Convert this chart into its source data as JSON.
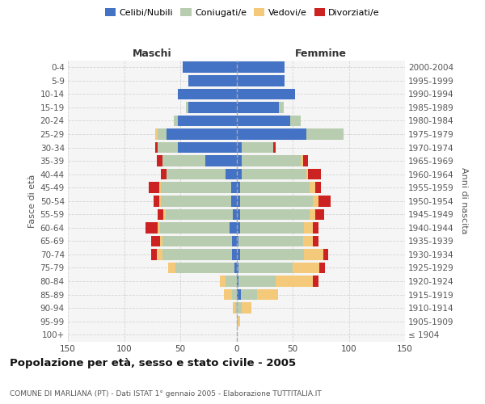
{
  "age_groups": [
    "100+",
    "95-99",
    "90-94",
    "85-89",
    "80-84",
    "75-79",
    "70-74",
    "65-69",
    "60-64",
    "55-59",
    "50-54",
    "45-49",
    "40-44",
    "35-39",
    "30-34",
    "25-29",
    "20-24",
    "15-19",
    "10-14",
    "5-9",
    "0-4"
  ],
  "birth_years": [
    "≤ 1904",
    "1905-1909",
    "1910-1914",
    "1915-1919",
    "1920-1924",
    "1925-1929",
    "1930-1934",
    "1935-1939",
    "1940-1944",
    "1945-1949",
    "1950-1954",
    "1955-1959",
    "1960-1964",
    "1965-1969",
    "1970-1974",
    "1975-1979",
    "1980-1984",
    "1985-1989",
    "1990-1994",
    "1995-1999",
    "2000-2004"
  ],
  "maschi": {
    "celibi": [
      0,
      0,
      0,
      0,
      0,
      2,
      4,
      4,
      6,
      3,
      5,
      5,
      10,
      28,
      52,
      62,
      52,
      43,
      52,
      43,
      48
    ],
    "coniugati": [
      0,
      0,
      1,
      4,
      10,
      52,
      62,
      62,
      62,
      60,
      62,
      62,
      52,
      38,
      18,
      8,
      4,
      2,
      0,
      0,
      0
    ],
    "vedovi": [
      0,
      0,
      2,
      7,
      5,
      7,
      5,
      2,
      2,
      2,
      2,
      2,
      0,
      0,
      0,
      2,
      0,
      0,
      0,
      0,
      0
    ],
    "divorziati": [
      0,
      0,
      0,
      0,
      0,
      0,
      5,
      8,
      11,
      5,
      5,
      9,
      5,
      5,
      2,
      0,
      0,
      0,
      0,
      0,
      0
    ]
  },
  "femmine": {
    "nubili": [
      0,
      0,
      0,
      4,
      2,
      2,
      3,
      2,
      3,
      3,
      3,
      3,
      5,
      5,
      5,
      62,
      48,
      38,
      52,
      43,
      43
    ],
    "coniugate": [
      0,
      1,
      5,
      14,
      33,
      48,
      57,
      57,
      57,
      62,
      65,
      62,
      57,
      52,
      28,
      33,
      9,
      4,
      0,
      0,
      0
    ],
    "vedove": [
      0,
      2,
      8,
      19,
      33,
      24,
      17,
      9,
      8,
      5,
      5,
      5,
      2,
      2,
      0,
      0,
      0,
      0,
      0,
      0,
      0
    ],
    "divorziate": [
      0,
      0,
      0,
      0,
      5,
      5,
      5,
      5,
      5,
      8,
      11,
      5,
      11,
      5,
      2,
      0,
      0,
      0,
      0,
      0,
      0
    ]
  },
  "colors": {
    "celibi": "#4472C4",
    "coniugati": "#B8CCB0",
    "vedovi": "#F5C97A",
    "divorziati": "#CC2222"
  },
  "title": "Popolazione per età, sesso e stato civile - 2005",
  "subtitle": "COMUNE DI MARLIANA (PT) - Dati ISTAT 1° gennaio 2005 - Elaborazione TUTTITALIA.IT",
  "ylabel_left": "Fasce di età",
  "ylabel_right": "Anni di nascita",
  "xlabel_left": "Maschi",
  "xlabel_right": "Femmine",
  "xlim": 150,
  "bg_color": "#f5f5f5",
  "grid_color": "#cccccc"
}
